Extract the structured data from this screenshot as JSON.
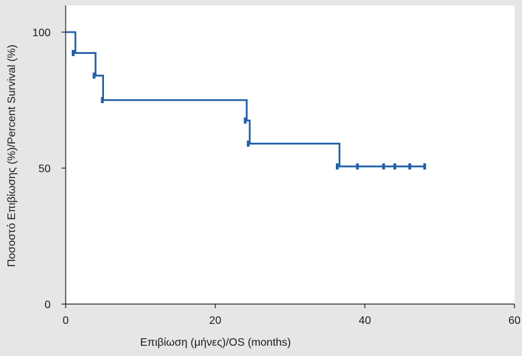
{
  "colors": {
    "background": "#e6e6e6",
    "plot_background": "#ffffff",
    "survival_line": "#1f5fa6",
    "axis": "#1a1a1a"
  },
  "chart_data": {
    "type": "line",
    "subtype": "kaplan-meier-step",
    "title": "",
    "xlabel": "Επιβίωση (μήνες)/OS (months)",
    "ylabel": "Ποσοστό Επιβίωσης (%)/Percent Survival (%)",
    "xlim": [
      0,
      60
    ],
    "ylim": [
      0,
      105
    ],
    "xticks": [
      0,
      20,
      40,
      60
    ],
    "xtick_labels": [
      "0",
      "20",
      "40",
      "60"
    ],
    "yticks": [
      0,
      50,
      100
    ],
    "ytick_labels": [
      "0",
      "50",
      "100"
    ],
    "grid": false,
    "legend": "none",
    "series": [
      {
        "values_x": [
          0,
          1.3,
          1.3,
          4.0,
          4.0,
          5.0,
          5.0,
          24.2,
          24.2,
          24.6,
          24.6,
          36.6,
          36.6,
          48.0
        ],
        "values_y": [
          100,
          100,
          92.3,
          92.3,
          84,
          84,
          75,
          75,
          67.5,
          67.5,
          59,
          59,
          50.6,
          50.6
        ]
      }
    ],
    "censor_marks": {
      "x": [
        1.0,
        3.8,
        4.9,
        24.0,
        24.4,
        36.3,
        39.0,
        42.5,
        44.0,
        46.0,
        48.0
      ],
      "y": [
        92.3,
        84,
        75,
        67.5,
        59,
        50.6,
        50.6,
        50.6,
        50.6,
        50.6,
        50.6
      ]
    }
  }
}
